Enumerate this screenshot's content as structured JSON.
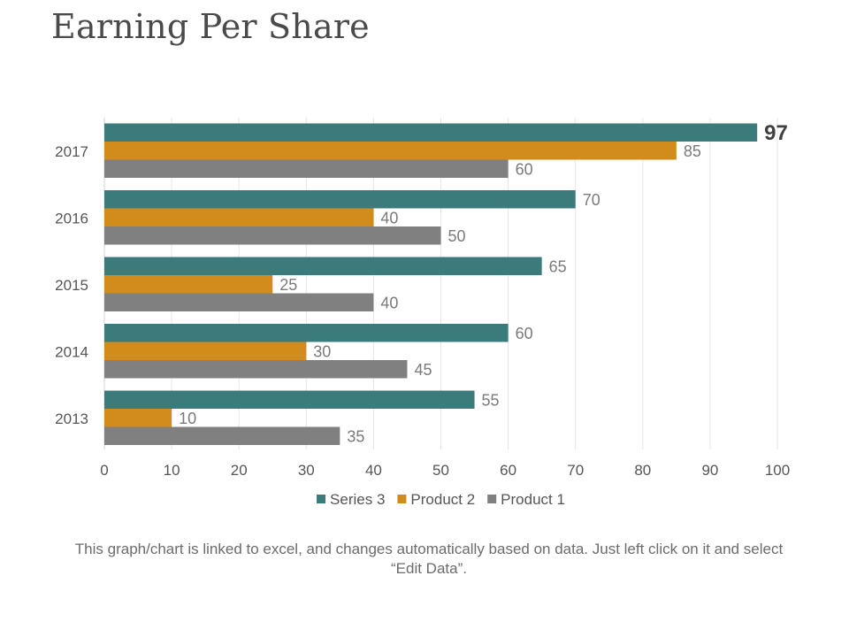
{
  "page": {
    "title": "Earning Per Share",
    "caption": "This graph/chart is linked to excel, and changes automatically based on data. Just left click on it and select “Edit Data”."
  },
  "chart_data": {
    "type": "bar",
    "orientation": "horizontal",
    "title": "Earning Per Share",
    "categories": [
      "2013",
      "2014",
      "2015",
      "2016",
      "2017"
    ],
    "series": [
      {
        "name": "Series 3",
        "color": "#3b7b7c",
        "values": [
          55,
          60,
          65,
          70,
          97
        ]
      },
      {
        "name": "Product 2",
        "color": "#d18c1b",
        "values": [
          10,
          30,
          25,
          40,
          85
        ]
      },
      {
        "name": "Product 1",
        "color": "#808080",
        "values": [
          35,
          45,
          40,
          50,
          60
        ]
      }
    ],
    "xlim": [
      0,
      100
    ],
    "x_ticks": [
      0,
      10,
      20,
      30,
      40,
      50,
      60,
      70,
      80,
      90,
      100
    ],
    "grid": true,
    "legend": "bottom",
    "xlabel": "",
    "ylabel": "",
    "emphasized_label": {
      "category": "2017",
      "series": "Series 3"
    }
  }
}
